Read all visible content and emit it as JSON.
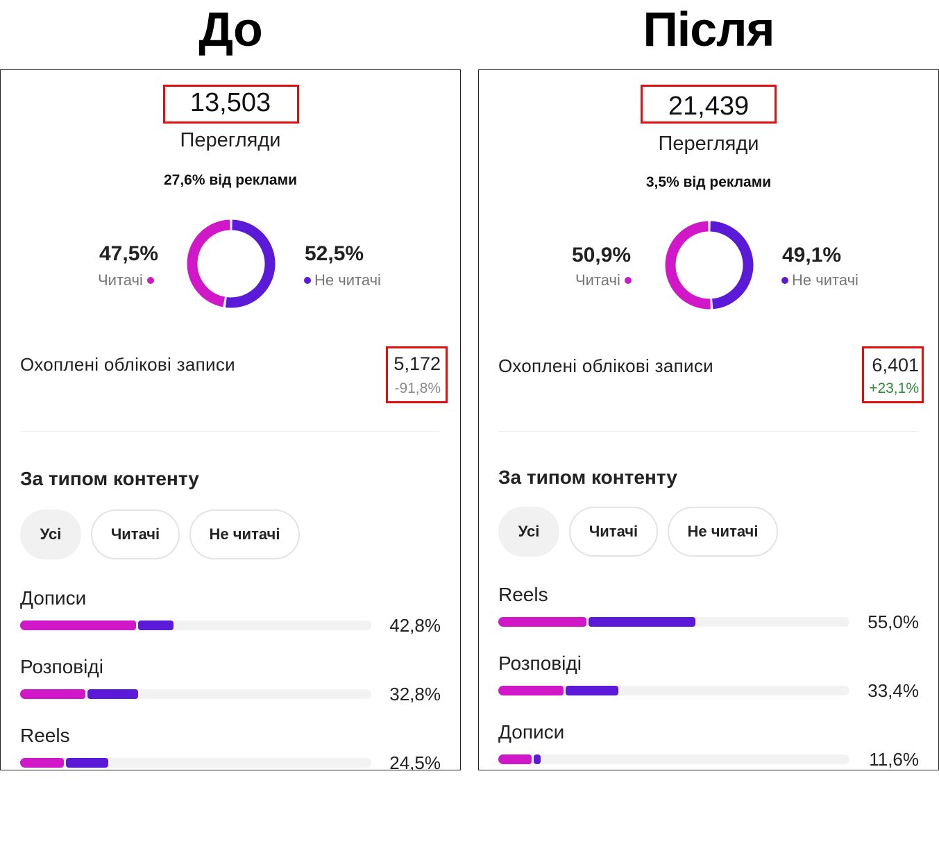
{
  "titles": {
    "before": "До",
    "after": "Після"
  },
  "before": {
    "views": "13,503",
    "views_label": "Перегляди",
    "ads_line": "27,6% від реклами",
    "followers_pct": "47,5%",
    "followers_label": "Читачі",
    "nonfollowers_pct": "52,5%",
    "nonfollowers_label": "Не читачі",
    "followers_share": 0.475,
    "reach_label": "Охоплені облікові записи",
    "reach_value": "5,172",
    "reach_delta": "-91,8%",
    "section_title": "За типом контенту",
    "filters": [
      "Усі",
      "Читачі",
      "Не читачі"
    ],
    "rows": [
      {
        "label": "Дописи",
        "pct": "42,8%",
        "followers": 0.33,
        "nonfollowers": 0.1
      },
      {
        "label": "Розповіді",
        "pct": "32,8%",
        "followers": 0.185,
        "nonfollowers": 0.145
      },
      {
        "label": "Reels",
        "pct": "24,5%",
        "followers": 0.125,
        "nonfollowers": 0.12
      }
    ]
  },
  "after": {
    "views": "21,439",
    "views_label": "Перегляди",
    "ads_line": "3,5% від реклами",
    "followers_pct": "50,9%",
    "followers_label": "Читачі",
    "nonfollowers_pct": "49,1%",
    "nonfollowers_label": "Не читачі",
    "followers_share": 0.509,
    "reach_label": "Охоплені облікові записи",
    "reach_value": "6,401",
    "reach_delta": "+23,1%",
    "section_title": "За типом контенту",
    "filters": [
      "Усі",
      "Читачі",
      "Не читачі"
    ],
    "rows": [
      {
        "label": "Reels",
        "pct": "55,0%",
        "followers": 0.25,
        "nonfollowers": 0.305
      },
      {
        "label": "Розповіді",
        "pct": "33,4%",
        "followers": 0.185,
        "nonfollowers": 0.15
      },
      {
        "label": "Дописи",
        "pct": "11,6%",
        "followers": 0.095,
        "nonfollowers": 0.02
      }
    ]
  },
  "colors": {
    "followers": "#d018c8",
    "nonfollowers": "#5a1ad8",
    "highlight": "#e01010",
    "negative": "#8a8a8a",
    "positive": "#2d8a3e"
  }
}
